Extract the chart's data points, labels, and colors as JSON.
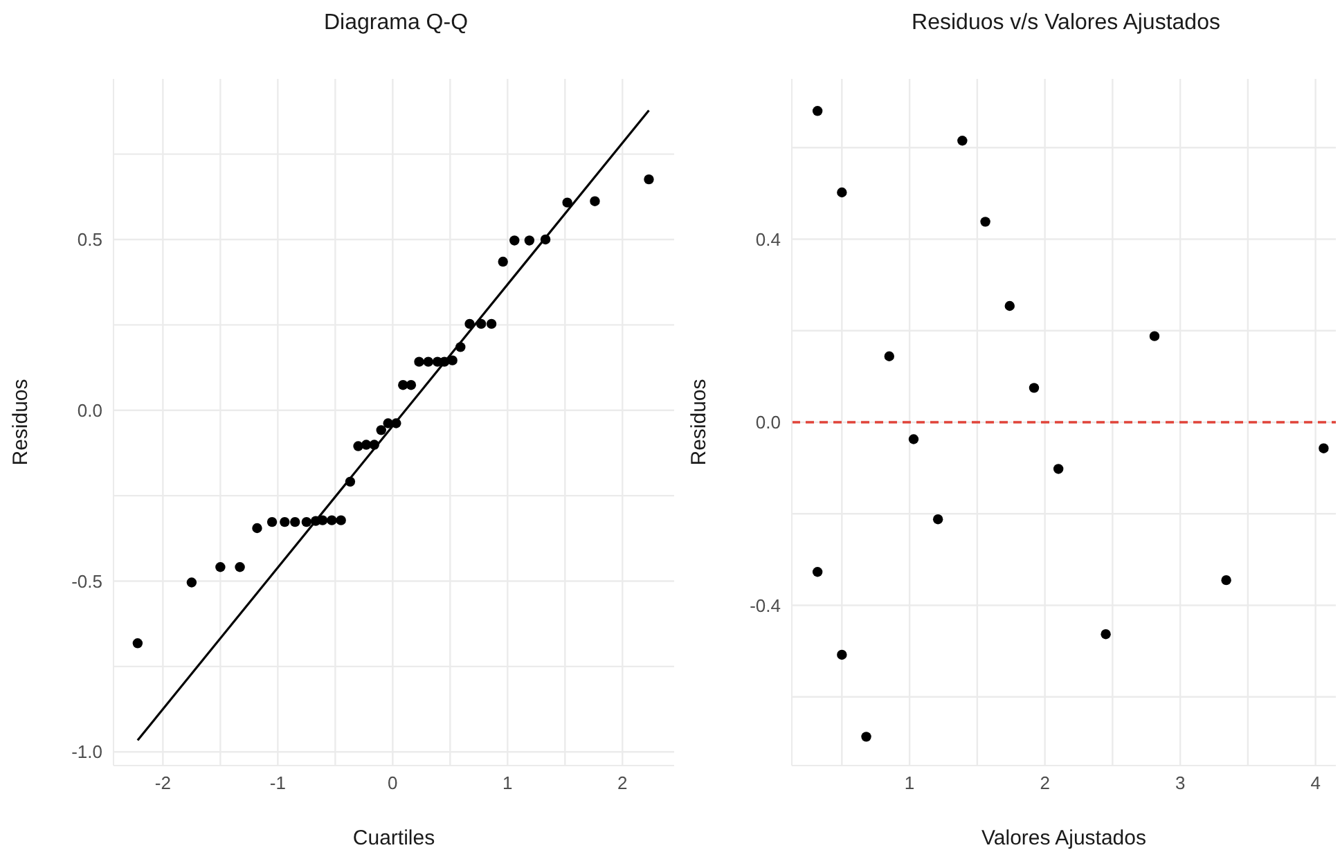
{
  "chart_data": [
    {
      "type": "scatter",
      "title": "Diagrama Q-Q",
      "xlabel": "Cuartiles",
      "ylabel": "Residuos",
      "xlim": [
        -2.43,
        2.45
      ],
      "ylim": [
        -1.04,
        0.97
      ],
      "xticks": [
        -2,
        {
          "value": -1.5,
          "label": null
        },
        -1,
        {
          "value": -0.5,
          "label": null
        },
        0,
        {
          "value": 0.5,
          "label": null
        },
        1,
        {
          "value": 1.5,
          "label": null
        },
        2
      ],
      "yticks": [
        {
          "value": -1,
          "label": "-1.0"
        },
        {
          "value": -0.75,
          "label": null
        },
        -0.5,
        {
          "value": -0.25,
          "label": null
        },
        {
          "value": 0,
          "label": "0.0"
        },
        {
          "value": 0.25,
          "label": null
        },
        0.5,
        {
          "value": 0.75,
          "label": null
        }
      ],
      "grid": true,
      "series": [
        {
          "marker": "circle",
          "color": "#000000",
          "x": [
            -2.22,
            -1.75,
            -1.5,
            -1.33,
            -1.18,
            -1.05,
            -0.94,
            -0.85,
            -0.75,
            -0.67,
            -0.61,
            -0.53,
            -0.45,
            -0.37,
            -0.3,
            -0.23,
            -0.16,
            -0.1,
            -0.04,
            0.03,
            0.09,
            0.16,
            0.23,
            0.31,
            0.39,
            0.45,
            0.52,
            0.59,
            0.67,
            0.77,
            0.86,
            0.96,
            1.06,
            1.19,
            1.33,
            1.52,
            1.76,
            2.23
          ],
          "values": [
            -0.682,
            -0.504,
            -0.459,
            -0.459,
            -0.345,
            -0.327,
            -0.327,
            -0.327,
            -0.327,
            -0.324,
            -0.322,
            -0.322,
            -0.322,
            -0.209,
            -0.105,
            -0.101,
            -0.101,
            -0.058,
            -0.038,
            -0.038,
            0.074,
            0.074,
            0.142,
            0.142,
            0.142,
            0.142,
            0.146,
            0.185,
            0.253,
            0.253,
            0.253,
            0.435,
            0.497,
            0.497,
            0.5,
            0.608,
            0.612,
            0.676
          ]
        },
        {
          "type": "line",
          "marker": "none",
          "color": "#000000",
          "x": [
            -2.22,
            2.23
          ],
          "values": [
            -0.966,
            0.878
          ]
        }
      ]
    },
    {
      "type": "scatter",
      "title": "Residuos v/s Valores Ajustados",
      "xlabel": "Valores Ajustados",
      "ylabel": "Residuos",
      "xlim": [
        0.13,
        4.15
      ],
      "ylim": [
        -0.75,
        0.75
      ],
      "xticks": [
        {
          "value": 0.5,
          "label": null
        },
        1,
        {
          "value": 1.5,
          "label": null
        },
        2,
        {
          "value": 2.5,
          "label": null
        },
        3,
        {
          "value": 3.5,
          "label": null
        },
        4
      ],
      "yticks": [
        {
          "value": -0.6,
          "label": null
        },
        -0.4,
        {
          "value": -0.2,
          "label": null
        },
        {
          "value": 0,
          "label": "0.0"
        },
        {
          "value": 0.2,
          "label": null
        },
        0.4,
        {
          "value": 0.6,
          "label": null
        }
      ],
      "grid": true,
      "ref_lines": [
        {
          "axis": "y",
          "value": 0,
          "color": "#e0443a",
          "line_style": "dashed"
        }
      ],
      "series": [
        {
          "marker": "circle",
          "color": "#000000",
          "x": [
            0.32,
            0.5,
            1.39,
            1.56,
            0.85,
            1.74,
            1.92,
            2.81,
            1.03,
            4.06,
            2.1,
            1.21,
            0.32,
            3.34,
            2.45,
            0.5,
            0.68
          ],
          "values": [
            0.68,
            0.502,
            0.615,
            0.438,
            0.144,
            0.254,
            0.075,
            0.188,
            -0.037,
            -0.057,
            -0.102,
            -0.212,
            -0.327,
            -0.345,
            -0.463,
            -0.508,
            -0.687
          ]
        }
      ]
    }
  ]
}
